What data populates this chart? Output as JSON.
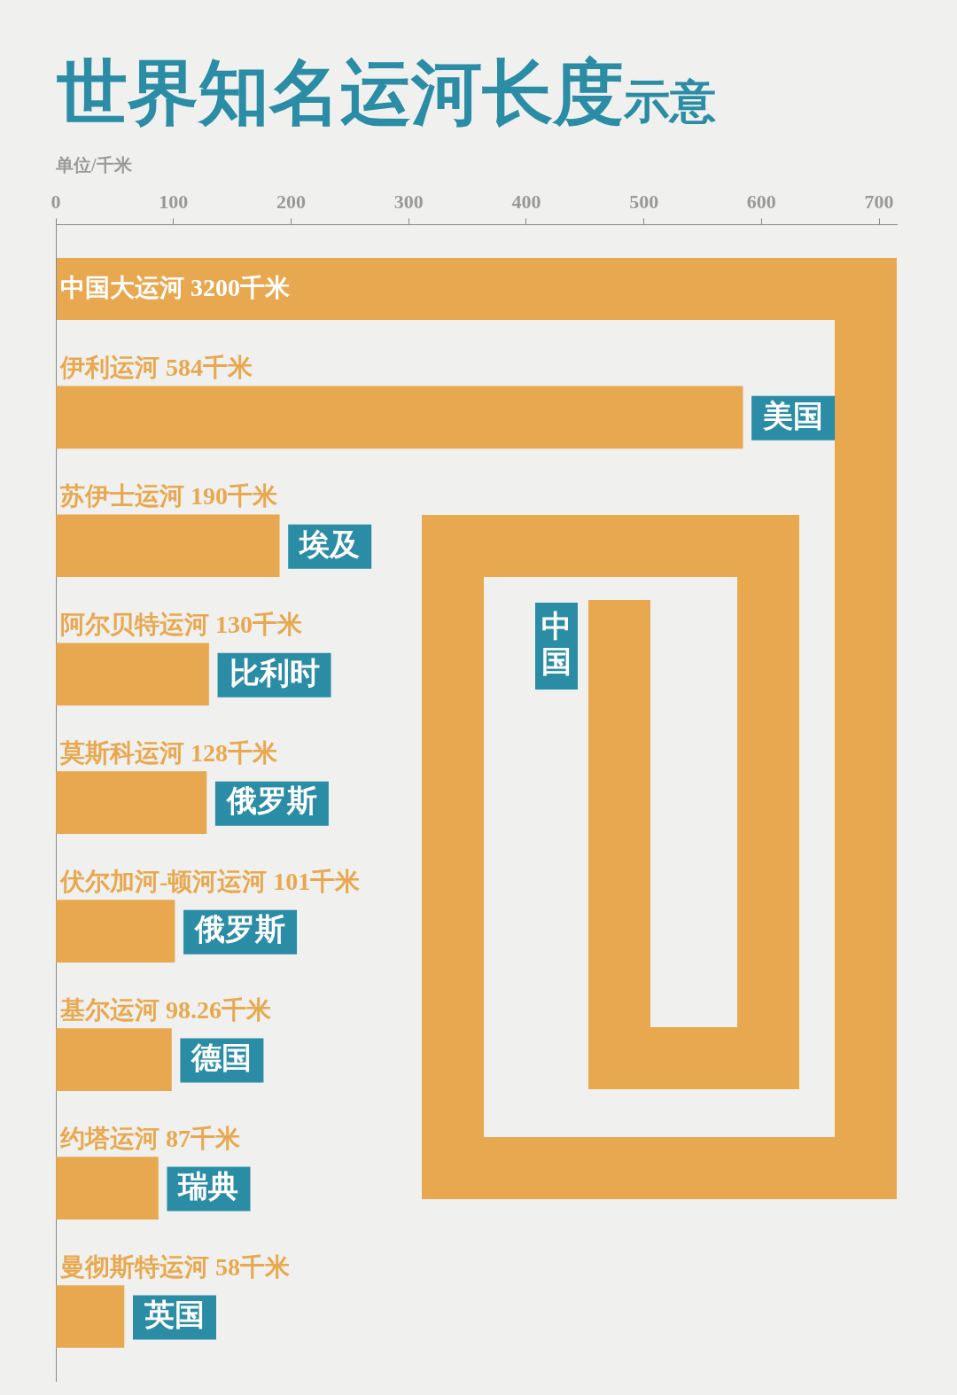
{
  "chart_data": {
    "type": "bar",
    "orientation": "horizontal",
    "title": "世界知名运河长度",
    "subtitle": "示意",
    "xlabel": "单位/千米",
    "categories": [
      "伊利运河",
      "苏伊士运河",
      "阿尔贝特运河",
      "莫斯科运河",
      "伏尔加河-顿河运河",
      "基尔运河",
      "约塔运河",
      "曼彻斯特运河"
    ],
    "values": [
      584,
      190,
      130,
      128,
      101,
      98.26,
      87,
      58
    ],
    "value_labels": [
      "584千米",
      "190千米",
      "130千米",
      "128千米",
      "101千米",
      "98.26千米",
      "87千米",
      "58千米"
    ],
    "color": "#e8a84f",
    "xlim": [
      0,
      715
    ],
    "xticks": [
      0,
      100,
      200,
      300,
      400,
      500,
      600,
      700
    ],
    "grid": false,
    "legend": false,
    "annotations": [
      "中国大运河 3200千米",
      "中国",
      {
        "text": "美国",
        "x": 584,
        "y": "伊利运河"
      },
      {
        "text": "埃及",
        "x": 190,
        "y": "苏伊士运河"
      },
      {
        "text": "比利时",
        "x": 130,
        "y": "阿尔贝特运河"
      },
      {
        "text": "俄罗斯",
        "x": 128,
        "y": "莫斯科运河"
      },
      {
        "text": "俄罗斯",
        "x": 101,
        "y": "伏尔加河-顿河运河"
      },
      {
        "text": "德国",
        "x": 98.26,
        "y": "基尔运河"
      },
      {
        "text": "瑞典",
        "x": 87,
        "y": "约塔运河"
      },
      {
        "text": "英国",
        "x": 58,
        "y": "曼彻斯特运河"
      }
    ]
  }
}
